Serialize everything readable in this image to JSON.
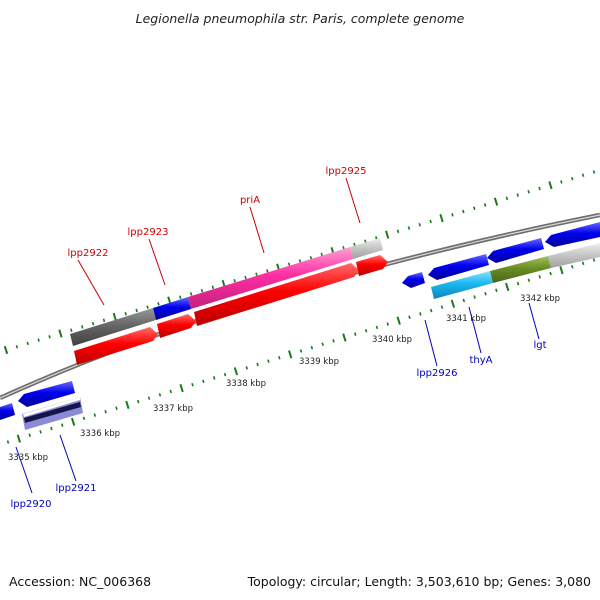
{
  "title": "Legionella pneumophila str. Paris, complete genome",
  "footer": {
    "accession": "Accession: NC_006368",
    "summary": "Topology: circular; Length: 3,503,610 bp; Genes: 3,080"
  },
  "colors": {
    "forward_label": "#cc0000",
    "reverse_label": "#0000bb",
    "tick": "#1a7a1a",
    "backbone": "#8a8a8a",
    "forward_cds": "#ff0000",
    "reverse_cds": "#0000ee",
    "pink": "#ff2fa3",
    "gray_dark": "#666666",
    "gray_light": "#c8c8c8",
    "cyan": "#1ab8f0",
    "olive": "#6b8e23",
    "navy_stripe": "#5050b0"
  },
  "scale_labels": [
    "3335 kbp",
    "3336 kbp",
    "3337 kbp",
    "3338 kbp",
    "3339 kbp",
    "3340 kbp",
    "3341 kbp",
    "3342 kbp"
  ],
  "forward_labels": [
    "lpp2922",
    "lpp2923",
    "priA",
    "lpp2925"
  ],
  "reverse_labels": [
    "lpp2920",
    "lpp2921",
    "lpp2926",
    "thyA",
    "lgt"
  ]
}
